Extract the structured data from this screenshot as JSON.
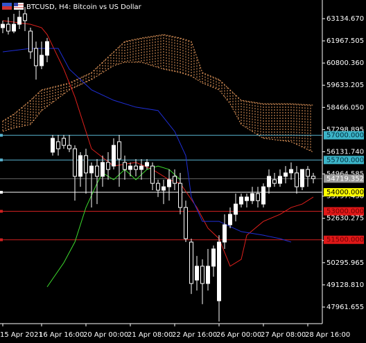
{
  "chart_data": {
    "type": "candlestick",
    "title": "BTCUSD, H4:  Bitcoin vs US Dollar",
    "categories": [
      "15 Apr 2021",
      null,
      null,
      null,
      null,
      null,
      null,
      "16 Apr 16:00",
      null,
      null,
      null,
      null,
      null,
      null,
      null,
      "20 Apr 00:00",
      null,
      null,
      null,
      null,
      null,
      null,
      null,
      "21 Apr 08:00",
      null,
      null,
      null,
      null,
      null,
      null,
      null,
      "22 Apr 16:00",
      null,
      null,
      null,
      null,
      null,
      null,
      null,
      "26 Apr 00:00",
      null,
      null,
      null,
      null,
      null,
      null,
      null,
      "27 Apr 08:00",
      null,
      null,
      null,
      null,
      null,
      null,
      null,
      "28 Apr 16:00",
      null
    ],
    "open": [
      62660,
      62840,
      62480,
      62840,
      63390,
      62480,
      61570,
      60660,
      61210,
      56110,
      56660,
      56840,
      56470,
      56290,
      54840,
      55930,
      55020,
      55380,
      54840,
      55570,
      55380,
      56660,
      55570,
      55200,
      55380,
      55200,
      55380,
      55380,
      54470,
      54110,
      54290,
      54840,
      54470,
      53200,
      51380,
      49380,
      50110,
      49200,
      50110,
      48290,
      51380,
      52290,
      52840,
      53380,
      53560,
      53560,
      53930,
      53380,
      54290,
      54660,
      54470,
      54840,
      55020,
      55020,
      54290,
      55200,
      54840
    ],
    "high": [
      63030,
      63210,
      63390,
      63570,
      63750,
      62660,
      61930,
      61930,
      62120,
      57020,
      57020,
      57020,
      57020,
      56470,
      56110,
      56290,
      55570,
      55750,
      55930,
      56110,
      56840,
      57020,
      55930,
      55570,
      55750,
      55750,
      55750,
      55570,
      54660,
      54660,
      55200,
      55200,
      55020,
      53560,
      51560,
      50650,
      50470,
      51020,
      51200,
      51740,
      52840,
      53200,
      53930,
      53930,
      53930,
      54290,
      54290,
      54470,
      55200,
      55020,
      55200,
      55380,
      55570,
      55380,
      55200,
      55380,
      55020
    ],
    "low": [
      62370,
      62300,
      62370,
      62590,
      62480,
      61020,
      59930,
      60480,
      60840,
      55930,
      55930,
      56290,
      56110,
      53560,
      54290,
      53930,
      53200,
      53380,
      54290,
      54660,
      55200,
      54290,
      54660,
      54840,
      54840,
      54660,
      55200,
      54110,
      53750,
      53380,
      53560,
      54110,
      52840,
      51380,
      48650,
      48830,
      48110,
      48830,
      49560,
      47200,
      51020,
      52110,
      52470,
      53200,
      53200,
      53380,
      53200,
      53200,
      53930,
      54290,
      54290,
      54470,
      54660,
      53930,
      54110,
      54290,
      54470
    ],
    "close": [
      62840,
      62480,
      62840,
      63210,
      63030,
      61390,
      60660,
      61210,
      61930,
      56840,
      56290,
      56470,
      56290,
      54840,
      55930,
      55020,
      55380,
      54840,
      55570,
      55200,
      56470,
      55750,
      55200,
      55380,
      55200,
      55380,
      55570,
      54470,
      54110,
      54290,
      54660,
      54470,
      53200,
      51560,
      49200,
      50110,
      49200,
      50110,
      51020,
      51380,
      52290,
      52840,
      53380,
      53750,
      53750,
      53930,
      53560,
      54290,
      54840,
      54470,
      54840,
      55020,
      55200,
      54290,
      55200,
      54840,
      54719.352
    ],
    "bull_color": "#ffffff",
    "bear_color": "#000000",
    "lines": [
      {
        "color": "#e0201c",
        "x": [
          0,
          5,
          7,
          8,
          11,
          13,
          16,
          20,
          24,
          27,
          30,
          32,
          35,
          37,
          39,
          41,
          43,
          44,
          47,
          50,
          52,
          54,
          56
        ],
        "values": [
          63030,
          62840,
          62660,
          62300,
          60480,
          59020,
          56290,
          55380,
          55570,
          55200,
          54660,
          54470,
          53200,
          52110,
          51560,
          50110,
          50470,
          51740,
          52470,
          52840,
          53200,
          53380,
          53750
        ]
      },
      {
        "color": "#1f2fd8",
        "x": [
          0,
          5,
          10,
          12,
          16,
          20,
          24,
          28,
          31,
          33,
          34,
          36,
          39,
          43,
          47,
          50,
          52
        ],
        "values": [
          61390,
          61570,
          61570,
          60480,
          59390,
          58840,
          58480,
          58300,
          57200,
          55930,
          53750,
          52470,
          52470,
          51930,
          51740,
          51560,
          51380
        ]
      },
      {
        "color": "#3ddc2e",
        "x": [
          8,
          11,
          13,
          15,
          17,
          18,
          20,
          22,
          24,
          26,
          28,
          30,
          32
        ],
        "values": [
          49020,
          50290,
          51380,
          53200,
          54470,
          55020,
          54660,
          55200,
          54660,
          55200,
          55380,
          55200,
          54660
        ]
      }
    ],
    "cloud": {
      "color": "#f0a060",
      "x": [
        0,
        2,
        5,
        7,
        12,
        16,
        20,
        22,
        25,
        29,
        32,
        34,
        36,
        39,
        41,
        43,
        47,
        52,
        56
      ],
      "upper": [
        57749,
        58113,
        58840,
        59386,
        59750,
        60296,
        61388,
        61934,
        62116,
        62298,
        62116,
        61934,
        60296,
        59932,
        59386,
        58840,
        58658,
        58658,
        58586
      ],
      "lower": [
        57203,
        57385,
        57567,
        58295,
        59386,
        59932,
        60660,
        60842,
        60842,
        60478,
        60296,
        60114,
        59750,
        59386,
        58658,
        57567,
        56839,
        56657,
        56111
      ]
    },
    "levels": [
      {
        "value": 57000,
        "label": "57000.000",
        "color": "#5ab4d0",
        "label_color": "#3cb4c8",
        "text_color": "#003040"
      },
      {
        "value": 55700,
        "label": "55700.000",
        "color": "#5ab4d0",
        "label_color": "#3cb4c8",
        "text_color": "#003040"
      },
      {
        "value": 54000,
        "label": "54000.000",
        "color": "#ffffff",
        "label_color": "#ffff00",
        "text_color": "#000000"
      },
      {
        "value": 53000,
        "label": "53000.000",
        "color": "#d02020",
        "label_color": "#e01818",
        "text_color": "#700000"
      },
      {
        "value": 51500,
        "label": "51500.000",
        "color": "#d02020",
        "label_color": "#e01818",
        "text_color": "#700000"
      }
    ],
    "current": {
      "value": 54719.352,
      "label": "54719.352",
      "color": "#9a9a9a"
    },
    "ylim": [
      47088,
      64117
    ],
    "yticks": [
      {
        "value": 63134.67,
        "label": "63134.670"
      },
      {
        "value": 61967.505,
        "label": "61967.505"
      },
      {
        "value": 60800.36,
        "label": "60800.360"
      },
      {
        "value": 59633.205,
        "label": "59633.205"
      },
      {
        "value": 58466.05,
        "label": "58466.050"
      },
      {
        "value": 57298.895,
        "label": "57298.895"
      },
      {
        "value": 56131.74,
        "label": "56131.740"
      },
      {
        "value": 54964.585,
        "label": "54964.585"
      },
      {
        "value": 53797.43,
        "label": "53797.430"
      },
      {
        "value": 52630.275,
        "label": "52630.275"
      },
      {
        "value": 51463.12,
        "label": "51463.120"
      },
      {
        "value": 50295.965,
        "label": "50295.965"
      },
      {
        "value": 49128.81,
        "label": "49128.810"
      },
      {
        "value": 47961.655,
        "label": "47961.655"
      }
    ]
  }
}
